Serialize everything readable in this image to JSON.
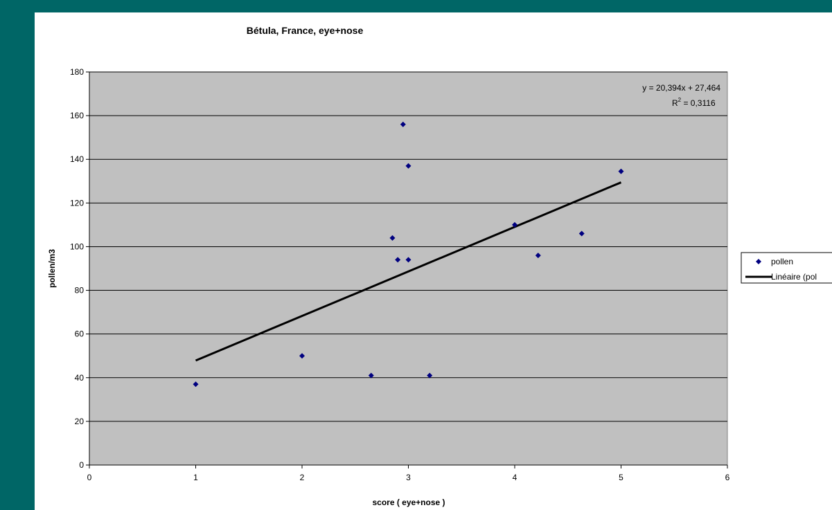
{
  "chart_data": {
    "type": "scatter",
    "title": "Bétula, France, eye+nose",
    "xlabel": "score ( eye+nose )",
    "ylabel": "pollen/m3",
    "xlim": [
      0,
      6
    ],
    "ylim": [
      0,
      180
    ],
    "x_ticks": [
      0,
      1,
      2,
      3,
      4,
      5,
      6
    ],
    "y_ticks": [
      0,
      20,
      40,
      60,
      80,
      100,
      120,
      140,
      160,
      180
    ],
    "grid": "horizontal",
    "legend_position": "right",
    "plot_background": "#c0c0c0",
    "series": [
      {
        "name": "pollen",
        "marker": "diamond",
        "color": "#000080",
        "points": [
          {
            "x": 1.0,
            "y": 37
          },
          {
            "x": 2.0,
            "y": 50
          },
          {
            "x": 2.65,
            "y": 41
          },
          {
            "x": 2.85,
            "y": 104
          },
          {
            "x": 2.9,
            "y": 94
          },
          {
            "x": 2.95,
            "y": 156
          },
          {
            "x": 3.0,
            "y": 137
          },
          {
            "x": 3.0,
            "y": 94
          },
          {
            "x": 3.2,
            "y": 41
          },
          {
            "x": 4.0,
            "y": 110
          },
          {
            "x": 4.22,
            "y": 96
          },
          {
            "x": 4.63,
            "y": 106
          },
          {
            "x": 5.0,
            "y": 134.5
          }
        ]
      }
    ],
    "trendline": {
      "name": "Linéaire (pollen)",
      "legend_label": "Linéaire (pol",
      "color": "#000000",
      "slope": 20.394,
      "intercept": 27.464,
      "x_range": [
        1,
        5
      ],
      "equation": "y = 20,394x + 27,464",
      "r2_prefix": "R",
      "r2_superscript": "2",
      "r2_value": " = 0,3116"
    }
  }
}
